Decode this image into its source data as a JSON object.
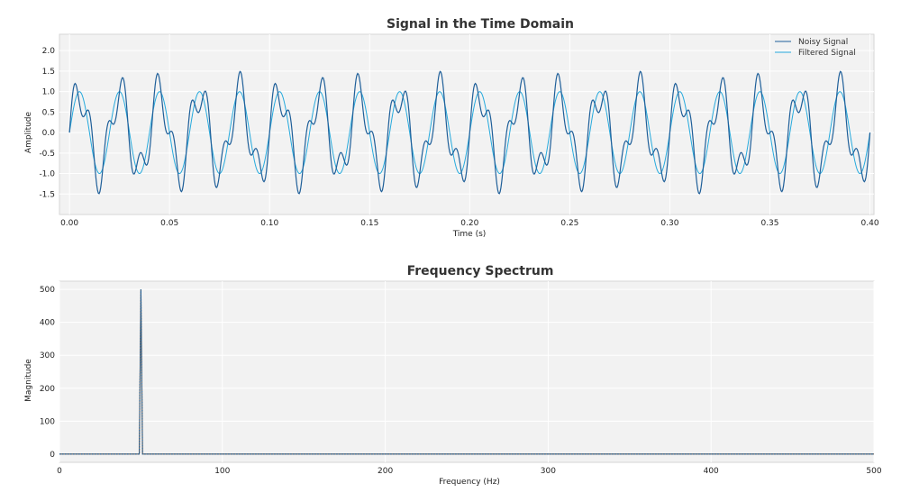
{
  "chart_data": [
    {
      "type": "line",
      "title": "Signal in the Time Domain",
      "xlabel": "Time (s)",
      "ylabel": "Amplitude",
      "xlim": [
        -0.005,
        0.402
      ],
      "ylim": [
        -2.0,
        2.4
      ],
      "xticks": [
        0.0,
        0.05,
        0.1,
        0.15,
        0.2,
        0.25,
        0.3,
        0.35,
        0.4
      ],
      "xtick_labels": [
        "0.00",
        "0.05",
        "0.10",
        "0.15",
        "0.20",
        "0.25",
        "0.30",
        "0.35",
        "0.40"
      ],
      "yticks": [
        -1.5,
        -1.0,
        -0.5,
        0.0,
        0.5,
        1.0,
        1.5,
        2.0
      ],
      "ytick_labels": [
        "-1.5",
        "-1.0",
        "-0.5",
        "0.0",
        "0.5",
        "1.0",
        "1.5",
        "2.0"
      ],
      "grid": true,
      "legend_position": "top-right",
      "series": [
        {
          "name": "Noisy Signal",
          "color": "#1f5f99",
          "components": [
            {
              "frequency_hz": 50,
              "amplitude": 1.0
            },
            {
              "frequency_hz": 120,
              "amplitude": 0.5
            }
          ],
          "x_range": [
            0.0,
            0.4
          ],
          "samples": 1000
        },
        {
          "name": "Filtered Signal",
          "color": "#27aadd",
          "components": [
            {
              "frequency_hz": 50,
              "amplitude": 1.0
            }
          ],
          "x_range": [
            0.0,
            0.4
          ],
          "samples": 1000
        }
      ]
    },
    {
      "type": "line",
      "title": "Frequency Spectrum",
      "xlabel": "Frequency (Hz)",
      "ylabel": "Magnitude",
      "xlim": [
        0,
        500
      ],
      "ylim": [
        -25,
        525
      ],
      "xticks": [
        0,
        100,
        200,
        300,
        400,
        500
      ],
      "xtick_labels": [
        "0",
        "100",
        "200",
        "300",
        "400",
        "500"
      ],
      "yticks": [
        0,
        100,
        200,
        300,
        400,
        500
      ],
      "ytick_labels": [
        "0",
        "100",
        "200",
        "300",
        "400",
        "500"
      ],
      "grid": true,
      "series": [
        {
          "color": "#555555",
          "dash": "solid",
          "x": [
            0,
            49,
            50,
            51,
            500
          ],
          "y": [
            0,
            0,
            500,
            0,
            0
          ]
        },
        {
          "color": "#1f5f99",
          "dash": "dotted",
          "x": [
            0,
            49,
            50,
            51,
            500
          ],
          "y": [
            0,
            0,
            500,
            0,
            0
          ]
        }
      ]
    }
  ]
}
